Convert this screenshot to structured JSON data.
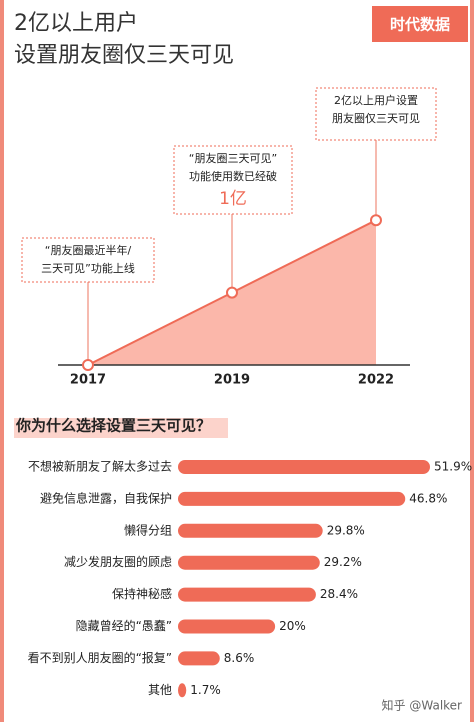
{
  "logo": "时代数据",
  "watermark": "知乎 @Walker",
  "chart_data": [
    {
      "type": "area",
      "title": [
        "2亿以上用户",
        "设置朋友圈仅三天可见"
      ],
      "categories": [
        "2017",
        "2019",
        "2022"
      ],
      "values": [
        0,
        1,
        2
      ],
      "ylim": [
        0,
        2.5
      ],
      "color": "#ef6b57",
      "fill": "#fbb7aa",
      "annotations": [
        {
          "lines": [
            "“朋友圈最近半年/",
            "三天可见”功能上线"
          ]
        },
        {
          "lines": [
            "“朋友圈三天可见”",
            "功能使用数已经破",
            "1亿"
          ]
        },
        {
          "lines": [
            "2亿以上用户设置",
            "朋友圈仅三天可见"
          ]
        }
      ]
    },
    {
      "type": "hbar",
      "title": "你为什么选择设置三天可见？",
      "categories": [
        "不想被新朋友了解太多过去",
        "避免信息泄露，自我保护",
        "懒得分组",
        "减少发朋友圈的顾虑",
        "保持神秘感",
        "隐藏曾经的“愚蠢”",
        "看不到别人朋友圈的“报复”",
        "其他"
      ],
      "values": [
        51.9,
        46.8,
        29.8,
        29.2,
        28.4,
        20,
        8.6,
        1.7
      ],
      "value_labels": [
        "51.9%",
        "46.8%",
        "29.8%",
        "29.2%",
        "28.4%",
        "20%",
        "8.6%",
        "1.7%"
      ],
      "xlim": [
        0,
        55
      ],
      "color": "#ef6b57"
    }
  ]
}
